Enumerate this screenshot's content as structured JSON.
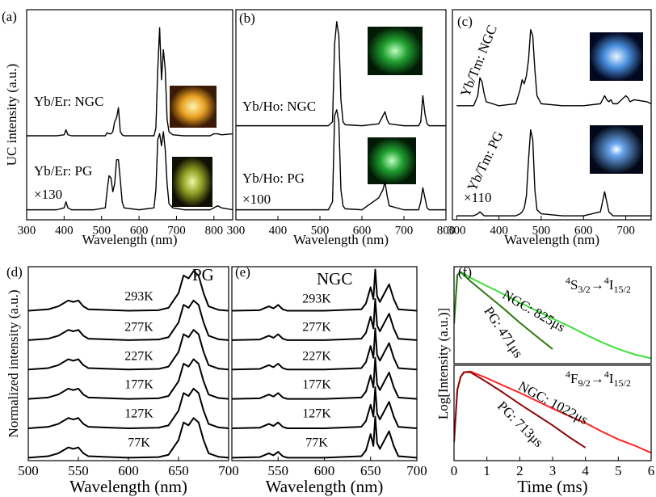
{
  "chart_data": [
    {
      "type": "line",
      "panel": "(a)",
      "x_label": "Wavelength (nm)",
      "y_label": "UC intensity (a.u.)",
      "xlim": [
        300,
        850
      ],
      "xticks": [
        300,
        400,
        500,
        600,
        700,
        800
      ],
      "ylim": [
        0,
        10.5
      ],
      "annotations": [
        "Yb/Er: NGC",
        "Yb/Er: PG",
        "×130"
      ],
      "x": [
        300,
        380,
        400,
        405,
        410,
        420,
        480,
        510,
        515,
        520,
        525,
        530,
        535,
        540,
        545,
        550,
        555,
        560,
        600,
        640,
        645,
        650,
        655,
        660,
        665,
        670,
        675,
        680,
        690,
        720,
        790,
        800,
        810,
        820,
        850
      ],
      "series": [
        {
          "name": "Yb/Er: NGC",
          "color": "#000000",
          "values": [
            4.2,
            4.2,
            4.25,
            4.5,
            4.25,
            4.2,
            4.2,
            4.2,
            4.35,
            4.3,
            4.3,
            4.4,
            4.9,
            5.1,
            5.6,
            4.4,
            4.25,
            4.2,
            4.2,
            4.2,
            4.6,
            7.5,
            9.6,
            7.0,
            8.5,
            7.5,
            5.0,
            4.4,
            4.25,
            4.2,
            4.2,
            4.3,
            4.3,
            4.25,
            4.3
          ]
        },
        {
          "name": "Yb/Er: PG",
          "color": "#000000",
          "values": [
            0.5,
            0.5,
            0.6,
            0.9,
            0.6,
            0.5,
            0.5,
            0.6,
            1.5,
            2.2,
            2.1,
            1.4,
            1.8,
            3.0,
            3.0,
            2.0,
            0.9,
            0.6,
            0.5,
            0.6,
            1.5,
            4.0,
            4.3,
            3.7,
            4.4,
            3.5,
            1.8,
            0.8,
            0.6,
            0.5,
            0.5,
            0.6,
            0.7,
            0.6,
            0.5
          ]
        }
      ]
    },
    {
      "type": "line",
      "panel": "(b)",
      "x_label": "Wavelength (nm)",
      "xlim": [
        300,
        800
      ],
      "xticks": [
        300,
        400,
        500,
        600,
        700,
        800
      ],
      "ylim": [
        0,
        10.5
      ],
      "annotations": [
        "Yb/Ho: NGC",
        "Yb/Ho: PG",
        "×100"
      ],
      "x": [
        300,
        400,
        450,
        500,
        520,
        530,
        535,
        540,
        545,
        550,
        555,
        560,
        600,
        640,
        650,
        655,
        660,
        665,
        700,
        735,
        740,
        745,
        750,
        755,
        760,
        800
      ],
      "series": [
        {
          "name": "Yb/Ho: NGC",
          "color": "#000000",
          "values": [
            4.7,
            4.7,
            4.7,
            4.7,
            4.7,
            4.9,
            8.8,
            9.9,
            9.2,
            6.0,
            4.9,
            4.75,
            4.7,
            4.8,
            5.2,
            5.4,
            5.0,
            4.8,
            4.7,
            4.7,
            4.9,
            6.2,
            5.3,
            4.8,
            4.7,
            4.7
          ]
        },
        {
          "name": "Yb/Ho: PG",
          "color": "#000000",
          "values": [
            0.5,
            0.5,
            0.5,
            0.5,
            0.5,
            0.9,
            5.2,
            5.5,
            4.9,
            1.5,
            0.7,
            0.55,
            0.5,
            1.1,
            1.5,
            1.9,
            1.2,
            0.7,
            0.5,
            0.5,
            0.9,
            1.6,
            1.1,
            0.6,
            0.5,
            0.5
          ]
        }
      ]
    },
    {
      "type": "line",
      "panel": "(c)",
      "x_label": "Wavelength (nm)",
      "xlim": [
        290,
        760
      ],
      "xticks": [
        300,
        400,
        500,
        600,
        700
      ],
      "ylim": [
        0,
        10.5
      ],
      "annotations": [
        "Yb/Tm: NGC",
        "Yb/Tm: PG",
        "×110"
      ],
      "x": [
        300,
        340,
        350,
        355,
        360,
        365,
        370,
        400,
        440,
        450,
        455,
        460,
        465,
        470,
        475,
        480,
        485,
        490,
        500,
        550,
        600,
        640,
        650,
        655,
        660,
        665,
        670,
        680,
        700,
        705,
        710,
        720,
        750,
        760
      ],
      "series": [
        {
          "name": "Yb/Tm: NGC",
          "color": "#000000",
          "values": [
            5.7,
            5.7,
            6.2,
            7.1,
            6.9,
            6.3,
            5.9,
            5.7,
            5.8,
            6.5,
            7.0,
            6.8,
            7.2,
            8.0,
            9.5,
            9.2,
            7.5,
            6.2,
            5.8,
            5.7,
            5.7,
            5.8,
            6.2,
            6.0,
            5.9,
            6.0,
            5.8,
            5.8,
            6.2,
            6.1,
            5.9,
            6.0,
            5.9,
            5.8
          ]
        },
        {
          "name": "Yb/Tm: PG",
          "color": "#000000",
          "values": [
            0.2,
            0.2,
            0.3,
            0.4,
            0.3,
            0.2,
            0.2,
            0.2,
            0.2,
            0.3,
            0.4,
            0.6,
            1.2,
            3.0,
            4.5,
            4.0,
            1.5,
            0.5,
            0.3,
            0.2,
            0.2,
            0.4,
            1.4,
            0.9,
            0.4,
            0.3,
            0.2,
            0.2,
            0.2,
            0.2,
            0.2,
            0.2,
            0.2,
            0.2
          ]
        }
      ]
    },
    {
      "type": "line",
      "panel": "(d)",
      "x_label": "Wavelength (nm)",
      "y_label": "Normalized intensity (a.u.)",
      "xlim": [
        500,
        700
      ],
      "xticks": [
        500,
        550,
        600,
        650,
        700
      ],
      "ylim": [
        0,
        6.6
      ],
      "annotations": [
        "PG"
      ],
      "x": [
        500,
        520,
        530,
        540,
        545,
        550,
        555,
        560,
        600,
        630,
        640,
        650,
        655,
        660,
        665,
        670,
        675,
        680,
        690,
        700
      ],
      "series": [
        {
          "name": "293K",
          "color": "#000000",
          "values": [
            5.1,
            5.15,
            5.25,
            5.45,
            5.4,
            5.45,
            5.25,
            5.15,
            5.1,
            5.12,
            5.2,
            5.7,
            6.3,
            6.2,
            6.45,
            6.3,
            5.7,
            5.25,
            5.13,
            5.1
          ]
        },
        {
          "name": "277K",
          "color": "#000000",
          "values": [
            4.1,
            4.15,
            4.25,
            4.45,
            4.4,
            4.45,
            4.25,
            4.15,
            4.1,
            4.12,
            4.2,
            4.7,
            5.3,
            5.2,
            5.45,
            5.3,
            4.7,
            4.25,
            4.13,
            4.1
          ]
        },
        {
          "name": "227K",
          "color": "#000000",
          "values": [
            3.1,
            3.15,
            3.25,
            3.45,
            3.4,
            3.45,
            3.25,
            3.15,
            3.1,
            3.12,
            3.2,
            3.7,
            4.3,
            4.2,
            4.45,
            4.3,
            3.7,
            3.25,
            3.13,
            3.1
          ]
        },
        {
          "name": "177K",
          "color": "#000000",
          "values": [
            2.1,
            2.15,
            2.25,
            2.45,
            2.4,
            2.45,
            2.25,
            2.15,
            2.1,
            2.12,
            2.2,
            2.7,
            3.3,
            3.2,
            3.45,
            3.3,
            2.7,
            2.25,
            2.13,
            2.1
          ]
        },
        {
          "name": "127K",
          "color": "#000000",
          "values": [
            1.1,
            1.15,
            1.25,
            1.45,
            1.4,
            1.45,
            1.25,
            1.15,
            1.1,
            1.12,
            1.2,
            1.7,
            2.3,
            2.2,
            2.45,
            2.3,
            1.7,
            1.25,
            1.13,
            1.1
          ]
        },
        {
          "name": "77K",
          "color": "#000000",
          "values": [
            0.1,
            0.15,
            0.25,
            0.45,
            0.4,
            0.45,
            0.25,
            0.15,
            0.1,
            0.12,
            0.2,
            0.7,
            1.3,
            1.2,
            1.45,
            1.3,
            0.7,
            0.25,
            0.13,
            0.1
          ]
        }
      ]
    },
    {
      "type": "line",
      "panel": "(e)",
      "x_label": "Wavelength (nm)",
      "xlim": [
        500,
        700
      ],
      "xticks": [
        550,
        600,
        650,
        700
      ],
      "ylim": [
        0,
        6.6
      ],
      "annotations": [
        "NGC"
      ],
      "x": [
        500,
        530,
        540,
        545,
        550,
        555,
        560,
        600,
        640,
        645,
        650,
        653,
        655,
        657,
        660,
        665,
        670,
        675,
        680,
        700
      ],
      "series": [
        {
          "name": "293K",
          "color": "#000000",
          "values": [
            5.1,
            5.12,
            5.25,
            5.18,
            5.3,
            5.15,
            5.1,
            5.1,
            5.15,
            5.35,
            5.9,
            5.5,
            6.5,
            5.6,
            5.4,
            5.7,
            6.0,
            5.5,
            5.15,
            5.1
          ]
        },
        {
          "name": "277K",
          "color": "#000000",
          "values": [
            4.1,
            4.12,
            4.25,
            4.18,
            4.3,
            4.15,
            4.1,
            4.1,
            4.15,
            4.35,
            4.9,
            4.5,
            5.5,
            4.6,
            4.4,
            4.7,
            5.0,
            4.5,
            4.15,
            4.1
          ]
        },
        {
          "name": "227K",
          "color": "#000000",
          "values": [
            3.1,
            3.12,
            3.25,
            3.18,
            3.3,
            3.15,
            3.1,
            3.1,
            3.15,
            3.35,
            3.9,
            3.5,
            4.5,
            3.6,
            3.4,
            3.7,
            4.0,
            3.5,
            3.15,
            3.1
          ]
        },
        {
          "name": "177K",
          "color": "#000000",
          "values": [
            2.1,
            2.12,
            2.25,
            2.18,
            2.3,
            2.15,
            2.1,
            2.1,
            2.15,
            2.35,
            2.9,
            2.5,
            3.5,
            2.6,
            2.4,
            2.7,
            3.0,
            2.5,
            2.15,
            2.1
          ]
        },
        {
          "name": "127K",
          "color": "#000000",
          "values": [
            1.1,
            1.12,
            1.25,
            1.18,
            1.3,
            1.15,
            1.1,
            1.1,
            1.15,
            1.35,
            1.9,
            1.5,
            2.5,
            1.6,
            1.4,
            1.7,
            2.0,
            1.5,
            1.15,
            1.1
          ]
        },
        {
          "name": "77K",
          "color": "#000000",
          "values": [
            0.1,
            0.12,
            0.25,
            0.18,
            0.3,
            0.15,
            0.1,
            0.1,
            0.15,
            0.35,
            0.9,
            0.5,
            1.5,
            0.6,
            0.4,
            0.7,
            1.0,
            0.5,
            0.15,
            0.1
          ]
        }
      ]
    },
    {
      "type": "line",
      "panel": "(f)",
      "y_label": "Log[Intensity (a.u.)]",
      "yscale": "log",
      "xlim": [
        0,
        6
      ],
      "ylim": [
        0.001,
        1.5
      ],
      "annotations": [
        "NGC: 825μs",
        "PG: 471μs"
      ],
      "transition": [
        "4",
        "S",
        "3/2",
        "→",
        "4",
        "I",
        "15/2"
      ],
      "x": [
        0,
        0.1,
        0.2,
        0.3,
        0.5,
        1,
        1.5,
        2,
        2.5,
        3,
        3.5,
        4,
        4.5,
        5,
        5.5,
        6
      ],
      "series": [
        {
          "name": "NGC",
          "color": "#3ee03e",
          "values": [
            0.02,
            0.8,
            1.0,
            0.9,
            0.65,
            0.35,
            0.19,
            0.1,
            0.055,
            0.03,
            0.017,
            0.009,
            0.005,
            0.003,
            0.002,
            0.0015
          ]
        },
        {
          "name": "PG",
          "color": "#2c7a12",
          "values": [
            0.02,
            0.8,
            1.0,
            0.8,
            0.5,
            0.18,
            0.065,
            0.022,
            0.008,
            0.003,
            null,
            null,
            null,
            null,
            null,
            null
          ]
        }
      ]
    },
    {
      "type": "line",
      "x_label": "Time (ms)",
      "yscale": "log",
      "xlim": [
        0,
        6
      ],
      "xticks": [
        0,
        1,
        2,
        3,
        4,
        5,
        6
      ],
      "ylim": [
        0.003,
        1.5
      ],
      "annotations": [
        "NGC: 1022μs",
        "PG: 713μs"
      ],
      "transition": [
        "4",
        "F",
        "9/2",
        "→",
        "4",
        "I",
        "15/2"
      ],
      "x": [
        0,
        0.1,
        0.2,
        0.3,
        0.5,
        1,
        1.5,
        2,
        2.5,
        3,
        3.5,
        4,
        4.5,
        5,
        5.5,
        6
      ],
      "series": [
        {
          "name": "NGC",
          "color": "#ff2222",
          "values": [
            0.01,
            0.3,
            0.7,
            0.95,
            1.0,
            0.65,
            0.4,
            0.25,
            0.15,
            0.09,
            0.055,
            0.035,
            0.02,
            0.012,
            0.008,
            0.005
          ]
        },
        {
          "name": "PG",
          "color": "#8b0a0a",
          "values": [
            0.01,
            0.3,
            0.7,
            0.95,
            0.95,
            0.5,
            0.25,
            0.12,
            0.06,
            0.03,
            0.014,
            0.007,
            null,
            null,
            null,
            null
          ]
        }
      ]
    }
  ]
}
